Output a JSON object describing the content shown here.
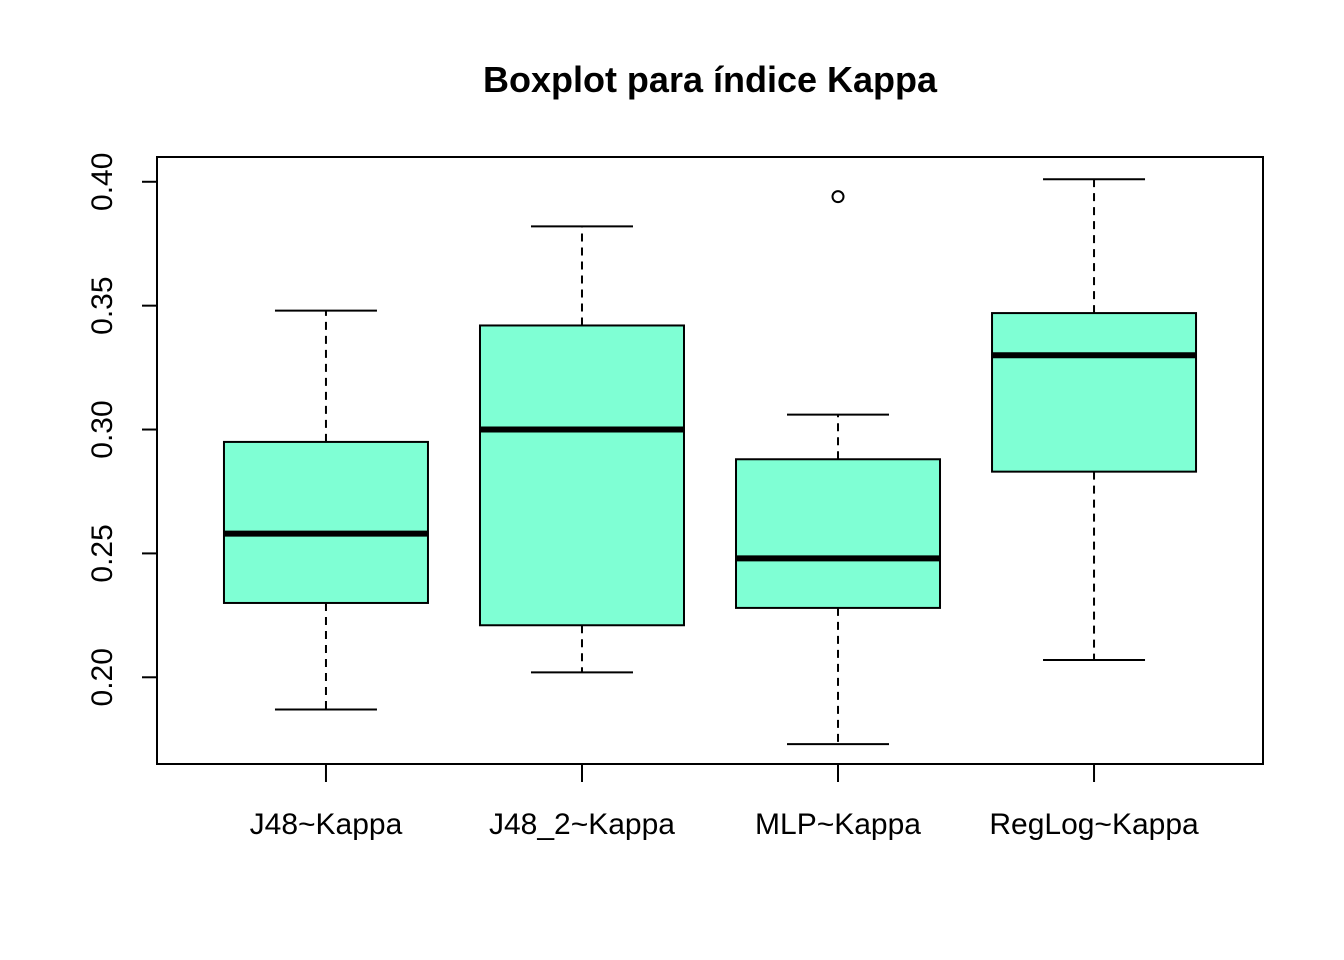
{
  "chart_data": {
    "type": "boxplot",
    "title": "Boxplot para índice Kappa",
    "xlabel": "",
    "ylabel": "",
    "ylim": [
      0.165,
      0.41
    ],
    "yticks": [
      0.2,
      0.25,
      0.3,
      0.35,
      0.4
    ],
    "ytick_labels": [
      "0.20",
      "0.25",
      "0.30",
      "0.35",
      "0.40"
    ],
    "grid": false,
    "box_color": "#7FFFD4",
    "line_color": "#000000",
    "categories": [
      "J48~Kappa",
      "J48_2~Kappa",
      "MLP~Kappa",
      "RegLog~Kappa"
    ],
    "series": [
      {
        "whisker_low": 0.187,
        "q1": 0.23,
        "median": 0.258,
        "q3": 0.295,
        "whisker_high": 0.348,
        "outliers": []
      },
      {
        "whisker_low": 0.202,
        "q1": 0.221,
        "median": 0.3,
        "q3": 0.342,
        "whisker_high": 0.382,
        "outliers": []
      },
      {
        "whisker_low": 0.173,
        "q1": 0.228,
        "median": 0.248,
        "q3": 0.288,
        "whisker_high": 0.306,
        "outliers": [
          0.394
        ]
      },
      {
        "whisker_low": 0.207,
        "q1": 0.283,
        "median": 0.33,
        "q3": 0.347,
        "whisker_high": 0.401,
        "outliers": []
      }
    ]
  }
}
